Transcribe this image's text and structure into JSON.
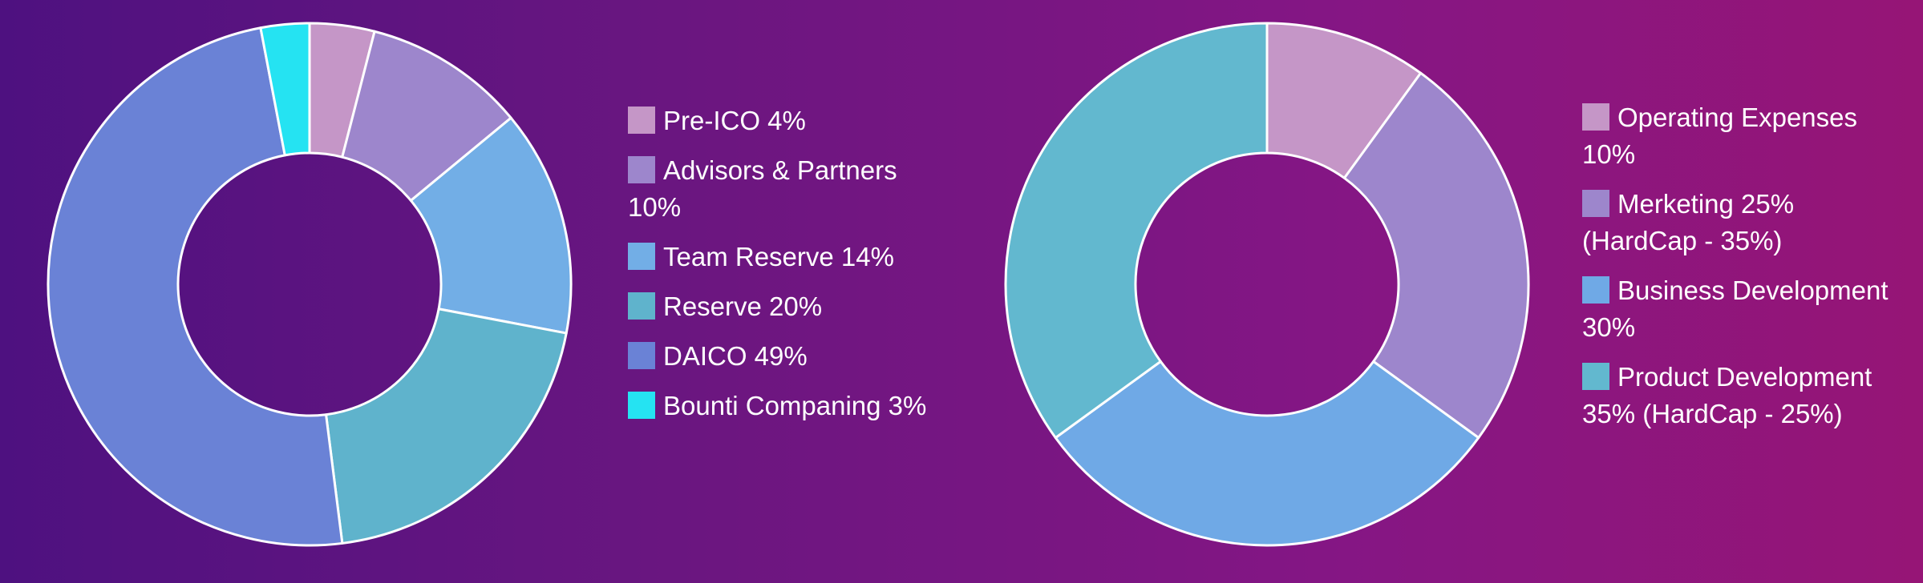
{
  "chart_data": [
    {
      "type": "pie",
      "title": "",
      "categories": [
        "Pre-ICO",
        "Advisors & Partners",
        "Team Reserve",
        "Reserve",
        "DAICO",
        "Bounti Companing"
      ],
      "values": [
        4,
        10,
        14,
        20,
        49,
        3
      ],
      "colors": [
        "#c596c7",
        "#9d86cc",
        "#72aee6",
        "#5fb3cc",
        "#6a82d6",
        "#25e3f2"
      ],
      "legend_labels": [
        "Pre-ICO 4%",
        "Advisors & Partners 10%",
        "Team Reserve 14%",
        "Reserve 20%",
        "DAICO 49%",
        "Bounti Companing 3%"
      ],
      "legend_position": "right"
    },
    {
      "type": "pie",
      "title": "",
      "categories": [
        "Operating Expenses",
        "Merketing",
        "Business Development",
        "Product Development"
      ],
      "values": [
        10,
        25,
        30,
        35
      ],
      "colors": [
        "#c596c7",
        "#9d86cc",
        "#6fa9e6",
        "#62b8cf"
      ],
      "legend_labels": [
        "Operating Expenses 10%",
        "Merketing 25% (HardCap - 35%)",
        "Business Development 30%",
        "Product Development 35% (HardCap - 25%)"
      ],
      "legend_position": "right"
    }
  ]
}
